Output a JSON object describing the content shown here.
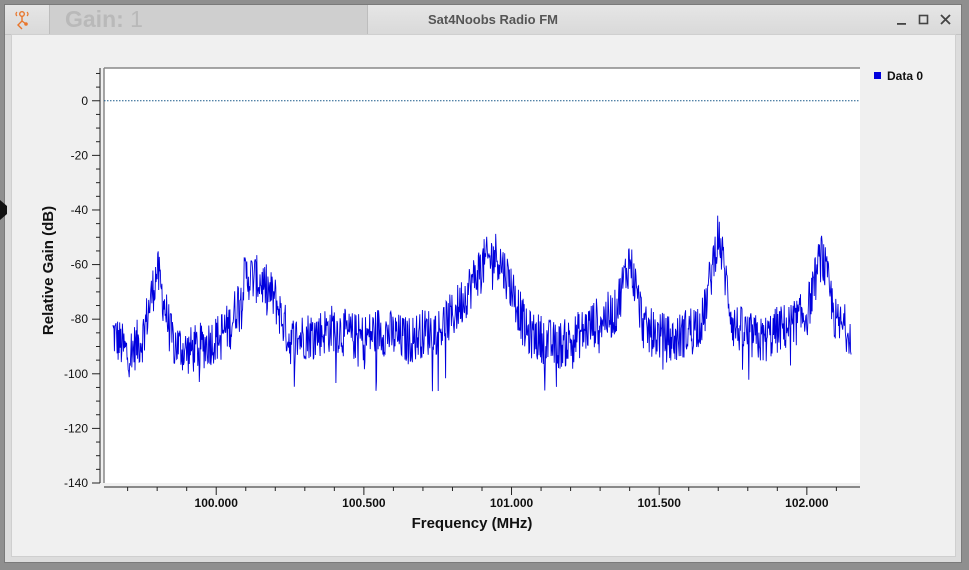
{
  "window": {
    "title": "Sat4Noobs Radio FM",
    "gain_label": "Gain:",
    "gain_value": "1"
  },
  "chart_data": {
    "type": "line",
    "xlabel": "Frequency (MHz)",
    "ylabel": "Relative Gain (dB)",
    "xlim": [
      99.62,
      102.18
    ],
    "ylim": [
      -140,
      12
    ],
    "x_ticks": [
      "100.000",
      "100.500",
      "101.000",
      "101.500",
      "102.000"
    ],
    "y_ticks": [
      "0",
      "-20",
      "-40",
      "-60",
      "-80",
      "-100",
      "-120",
      "-140"
    ],
    "legend": {
      "entries": [
        "Data 0"
      ],
      "placement": "top-right"
    },
    "reference_line_y": 0,
    "series": [
      {
        "name": "Data 0",
        "color": "#0000dd",
        "x": [
          99.65,
          99.7,
          99.75,
          99.8,
          99.85,
          99.9,
          99.95,
          100.0,
          100.05,
          100.1,
          100.15,
          100.2,
          100.25,
          100.3,
          100.35,
          100.4,
          100.45,
          100.5,
          100.55,
          100.6,
          100.65,
          100.7,
          100.75,
          100.8,
          100.85,
          100.9,
          100.95,
          101.0,
          101.05,
          101.1,
          101.15,
          101.2,
          101.25,
          101.3,
          101.35,
          101.4,
          101.45,
          101.5,
          101.55,
          101.6,
          101.65,
          101.7,
          101.75,
          101.8,
          101.85,
          101.9,
          101.95,
          102.0,
          102.05,
          102.1,
          102.15
        ],
        "y": [
          -85,
          -93,
          -87,
          -62,
          -88,
          -92,
          -90,
          -87,
          -82,
          -64,
          -66,
          -73,
          -88,
          -86,
          -85,
          -83,
          -86,
          -87,
          -84,
          -86,
          -88,
          -85,
          -84,
          -79,
          -70,
          -60,
          -56,
          -68,
          -85,
          -87,
          -90,
          -88,
          -84,
          -80,
          -78,
          -58,
          -84,
          -86,
          -88,
          -84,
          -80,
          -48,
          -82,
          -86,
          -88,
          -84,
          -82,
          -78,
          -56,
          -82,
          -84
        ]
      }
    ]
  }
}
